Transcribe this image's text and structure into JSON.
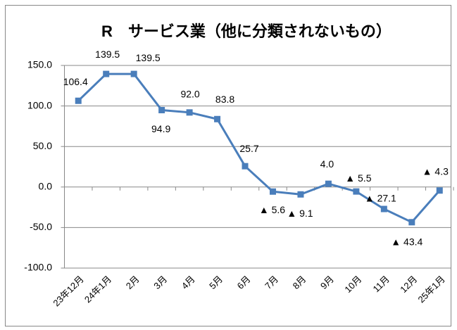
{
  "chart_data": {
    "type": "line",
    "title": "R　サービス業（他に分類されないもの）",
    "categories": [
      "23年12月",
      "24年1月",
      "2月",
      "3月",
      "4月",
      "5月",
      "6月",
      "7月",
      "8月",
      "9月",
      "10月",
      "11月",
      "12月",
      "25年1月"
    ],
    "series": [
      {
        "color": "#4a7ebb",
        "values": [
          106.4,
          139.5,
          139.5,
          94.9,
          92.0,
          83.8,
          25.7,
          -5.6,
          -9.1,
          4.0,
          -5.5,
          -27.1,
          -43.4,
          -4.3
        ],
        "value_labels": [
          "106.4",
          "139.5",
          "139.5",
          "94.9",
          "92.0",
          "83.8",
          "25.7",
          "▲ 5.6",
          "▲ 9.1",
          "4.0",
          "▲ 5.5",
          "▲ 27.1",
          "▲ 43.4",
          "▲ 4.3"
        ]
      }
    ],
    "ylim": [
      -100,
      150
    ],
    "yticks": [
      {
        "value": -100,
        "label": "-100.0"
      },
      {
        "value": -50,
        "label": "-50.0"
      },
      {
        "value": 0,
        "label": "0.0"
      },
      {
        "value": 50,
        "label": "50.0"
      },
      {
        "value": 100,
        "label": "100.0"
      },
      {
        "value": 150,
        "label": "150.0"
      }
    ],
    "grid": true
  }
}
